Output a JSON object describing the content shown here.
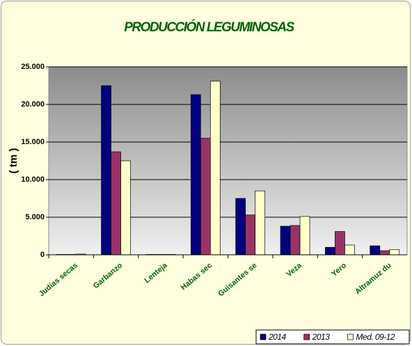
{
  "chart_data": {
    "type": "bar",
    "title": "PRODUCCIÓN LEGUMINOSAS",
    "y_label": "( tm )",
    "categories": [
      "Judías secas",
      "Garbanzo",
      "Lenteja",
      "Habas sec",
      "Guisantes se",
      "Veza",
      "Yero",
      "Altramuz du"
    ],
    "series": [
      {
        "name": "2014",
        "color": "#000080",
        "values": [
          50,
          22500,
          50,
          21300,
          7500,
          3800,
          1000,
          1200
        ]
      },
      {
        "name": "2013",
        "color": "#993366",
        "values": [
          50,
          13700,
          50,
          15500,
          5300,
          3900,
          3100,
          550
        ]
      },
      {
        "name": "Med. 09-12",
        "color": "#ffffcc",
        "values": [
          100,
          12500,
          50,
          23100,
          8500,
          5100,
          1300,
          700
        ]
      }
    ],
    "ylim": [
      0,
      25000
    ],
    "yticks": [
      {
        "value": 0,
        "label": "0"
      },
      {
        "value": 5000,
        "label": "5.000"
      },
      {
        "value": 10000,
        "label": "10.000"
      },
      {
        "value": 15000,
        "label": "15.000"
      },
      {
        "value": 20000,
        "label": "20.000"
      },
      {
        "value": 25000,
        "label": "25.000"
      }
    ],
    "grid": true,
    "legend": "bottom-right"
  }
}
